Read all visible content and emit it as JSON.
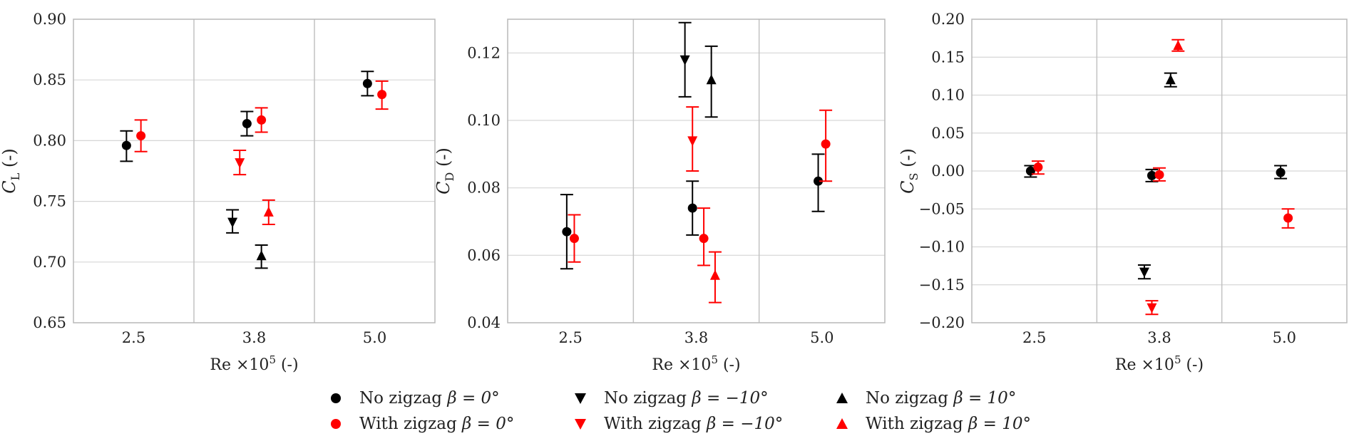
{
  "chart_data": [
    {
      "type": "scatter",
      "id": "cl",
      "ylabel_main": "C",
      "ylabel_sub": "L",
      "ylabel_unit": "(-)",
      "xlabel_main": "Re ×10",
      "xlabel_exp": "5",
      "xlabel_unit": "(-)",
      "categories": [
        "2.5",
        "3.8",
        "5.0"
      ],
      "ylim": [
        0.65,
        0.9
      ],
      "yticks": [
        "0.65",
        "0.70",
        "0.75",
        "0.80",
        "0.85",
        "0.90"
      ],
      "series": [
        {
          "name": "No zigzag β = 0°",
          "color": "#000000",
          "marker": "circle",
          "points": [
            {
              "cat": 0,
              "offset": -0.1,
              "y": 0.796,
              "lo": 0.783,
              "hi": 0.808
            },
            {
              "cat": 1,
              "offset": -0.1,
              "y": 0.814,
              "lo": 0.804,
              "hi": 0.824
            },
            {
              "cat": 2,
              "offset": -0.1,
              "y": 0.847,
              "lo": 0.837,
              "hi": 0.857
            }
          ]
        },
        {
          "name": "With zigzag β = 0°",
          "color": "#ff0000",
          "marker": "circle",
          "points": [
            {
              "cat": 0,
              "offset": 0.1,
              "y": 0.804,
              "lo": 0.791,
              "hi": 0.817
            },
            {
              "cat": 1,
              "offset": 0.1,
              "y": 0.817,
              "lo": 0.807,
              "hi": 0.827
            },
            {
              "cat": 2,
              "offset": 0.1,
              "y": 0.838,
              "lo": 0.826,
              "hi": 0.849
            }
          ]
        },
        {
          "name": "No zigzag β = −10°",
          "color": "#000000",
          "marker": "tri-down",
          "points": [
            {
              "cat": 1,
              "offset": -0.3,
              "y": 0.733,
              "lo": 0.724,
              "hi": 0.743
            }
          ]
        },
        {
          "name": "With zigzag β = −10°",
          "color": "#ff0000",
          "marker": "tri-down",
          "points": [
            {
              "cat": 1,
              "offset": -0.2,
              "y": 0.782,
              "lo": 0.772,
              "hi": 0.792
            }
          ]
        },
        {
          "name": "No zigzag β = 10°",
          "color": "#000000",
          "marker": "tri-up",
          "points": [
            {
              "cat": 1,
              "offset": 0.1,
              "y": 0.705,
              "lo": 0.695,
              "hi": 0.714
            }
          ]
        },
        {
          "name": "With zigzag β = 10°",
          "color": "#ff0000",
          "marker": "tri-up",
          "points": [
            {
              "cat": 1,
              "offset": 0.2,
              "y": 0.741,
              "lo": 0.731,
              "hi": 0.751
            }
          ]
        }
      ]
    },
    {
      "type": "scatter",
      "id": "cd",
      "ylabel_main": "C",
      "ylabel_sub": "D",
      "ylabel_unit": "(-)",
      "xlabel_main": "Re ×10",
      "xlabel_exp": "5",
      "xlabel_unit": "(-)",
      "categories": [
        "2.5",
        "3.8",
        "5.0"
      ],
      "ylim": [
        0.04,
        0.13
      ],
      "yticks": [
        "0.04",
        "0.06",
        "0.08",
        "0.10",
        "0.12"
      ],
      "series": [
        {
          "name": "No zigzag β = 0°",
          "color": "#000000",
          "marker": "circle",
          "points": [
            {
              "cat": 0,
              "offset": -0.05,
              "y": 0.067,
              "lo": 0.056,
              "hi": 0.078
            },
            {
              "cat": 1,
              "offset": -0.05,
              "y": 0.074,
              "lo": 0.066,
              "hi": 0.082
            },
            {
              "cat": 2,
              "offset": -0.05,
              "y": 0.082,
              "lo": 0.073,
              "hi": 0.09
            }
          ]
        },
        {
          "name": "With zigzag β = 0°",
          "color": "#ff0000",
          "marker": "circle",
          "points": [
            {
              "cat": 0,
              "offset": 0.05,
              "y": 0.065,
              "lo": 0.058,
              "hi": 0.072
            },
            {
              "cat": 1,
              "offset": 0.1,
              "y": 0.065,
              "lo": 0.057,
              "hi": 0.074
            },
            {
              "cat": 2,
              "offset": 0.05,
              "y": 0.093,
              "lo": 0.082,
              "hi": 0.103
            }
          ]
        },
        {
          "name": "No zigzag β = −10°",
          "color": "#000000",
          "marker": "tri-down",
          "points": [
            {
              "cat": 1,
              "offset": -0.15,
              "y": 0.118,
              "lo": 0.107,
              "hi": 0.129
            }
          ]
        },
        {
          "name": "With zigzag β = −10°",
          "color": "#ff0000",
          "marker": "tri-down",
          "points": [
            {
              "cat": 1,
              "offset": -0.05,
              "y": 0.094,
              "lo": 0.085,
              "hi": 0.104
            }
          ]
        },
        {
          "name": "No zigzag β = 10°",
          "color": "#000000",
          "marker": "tri-up",
          "points": [
            {
              "cat": 1,
              "offset": 0.2,
              "y": 0.112,
              "lo": 0.101,
              "hi": 0.122
            }
          ]
        },
        {
          "name": "With zigzag β = 10°",
          "color": "#ff0000",
          "marker": "tri-up",
          "points": [
            {
              "cat": 1,
              "offset": 0.25,
              "y": 0.054,
              "lo": 0.046,
              "hi": 0.061
            }
          ]
        }
      ]
    },
    {
      "type": "scatter",
      "id": "cs",
      "ylabel_main": "C",
      "ylabel_sub": "S",
      "ylabel_unit": "(-)",
      "xlabel_main": "Re ×10",
      "xlabel_exp": "5",
      "xlabel_unit": "(-)",
      "categories": [
        "2.5",
        "3.8",
        "5.0"
      ],
      "ylim": [
        -0.2,
        0.2
      ],
      "yticks": [
        "−0.20",
        "−0.15",
        "−0.10",
        "−0.05",
        "0.00",
        "0.05",
        "0.10",
        "0.15",
        "0.20"
      ],
      "series": [
        {
          "name": "No zigzag β = 0°",
          "color": "#000000",
          "marker": "circle",
          "points": [
            {
              "cat": 0,
              "offset": -0.05,
              "y": 0.0,
              "lo": -0.008,
              "hi": 0.007
            },
            {
              "cat": 1,
              "offset": -0.1,
              "y": -0.006,
              "lo": -0.014,
              "hi": 0.002
            },
            {
              "cat": 2,
              "offset": -0.05,
              "y": -0.002,
              "lo": -0.01,
              "hi": 0.007
            }
          ]
        },
        {
          "name": "With zigzag β = 0°",
          "color": "#ff0000",
          "marker": "circle",
          "points": [
            {
              "cat": 0,
              "offset": 0.05,
              "y": 0.005,
              "lo": -0.004,
              "hi": 0.013
            },
            {
              "cat": 1,
              "offset": 0.0,
              "y": -0.005,
              "lo": -0.013,
              "hi": 0.004
            },
            {
              "cat": 2,
              "offset": 0.05,
              "y": -0.062,
              "lo": -0.075,
              "hi": -0.05
            }
          ]
        },
        {
          "name": "No zigzag β = −10°",
          "color": "#000000",
          "marker": "tri-down",
          "points": [
            {
              "cat": 1,
              "offset": -0.2,
              "y": -0.133,
              "lo": -0.142,
              "hi": -0.124
            }
          ]
        },
        {
          "name": "With zigzag β = −10°",
          "color": "#ff0000",
          "marker": "tri-down",
          "points": [
            {
              "cat": 1,
              "offset": -0.1,
              "y": -0.18,
              "lo": -0.189,
              "hi": -0.171
            }
          ]
        },
        {
          "name": "No zigzag β = 10°",
          "color": "#000000",
          "marker": "tri-up",
          "points": [
            {
              "cat": 1,
              "offset": 0.15,
              "y": 0.12,
              "lo": 0.111,
              "hi": 0.129
            }
          ]
        },
        {
          "name": "With zigzag β = 10°",
          "color": "#ff0000",
          "marker": "tri-up",
          "points": [
            {
              "cat": 1,
              "offset": 0.25,
              "y": 0.165,
              "lo": 0.158,
              "hi": 0.173
            }
          ]
        }
      ]
    }
  ],
  "legend": [
    {
      "prefix": "No zigzag",
      "math": "β = 0°",
      "color": "#000000",
      "marker": "circle"
    },
    {
      "prefix": "No zigzag",
      "math": "β = −10°",
      "color": "#000000",
      "marker": "tri-down"
    },
    {
      "prefix": "No zigzag",
      "math": "β = 10°",
      "color": "#000000",
      "marker": "tri-up"
    },
    {
      "prefix": "With zigzag",
      "math": "β = 0°",
      "color": "#ff0000",
      "marker": "circle"
    },
    {
      "prefix": "With zigzag",
      "math": "β = −10°",
      "color": "#ff0000",
      "marker": "tri-down"
    },
    {
      "prefix": "With zigzag",
      "math": "β = 10°",
      "color": "#ff0000",
      "marker": "tri-up"
    }
  ]
}
